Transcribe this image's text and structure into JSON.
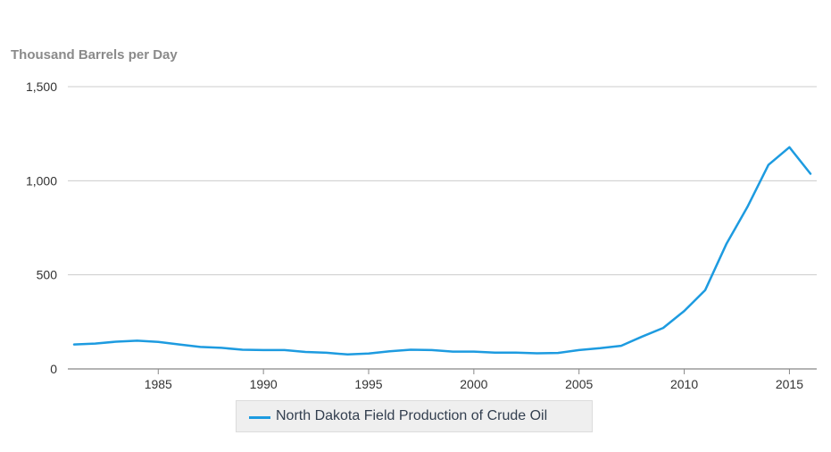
{
  "chart_data": {
    "type": "line",
    "title": "",
    "xlabel": "",
    "ylabel": "Thousand Barrels per Day",
    "xlim": [
      1981,
      2016
    ],
    "ylim": [
      0,
      1500
    ],
    "y_ticks": [
      0,
      500,
      1000,
      1500
    ],
    "y_tick_labels": [
      "0",
      "500",
      "1,000",
      "1,500"
    ],
    "x_ticks": [
      1985,
      1990,
      1995,
      2000,
      2005,
      2010,
      2015
    ],
    "x_tick_labels": [
      "1985",
      "1990",
      "1995",
      "2000",
      "2005",
      "2010",
      "2015"
    ],
    "grid": true,
    "legend": "bottom-center",
    "series": [
      {
        "name": "North Dakota Field Production of Crude Oil",
        "color": "#1d9be0",
        "x": [
          1981,
          1982,
          1983,
          1984,
          1985,
          1986,
          1987,
          1988,
          1989,
          1990,
          1991,
          1992,
          1993,
          1994,
          1995,
          1996,
          1997,
          1998,
          1999,
          2000,
          2001,
          2002,
          2003,
          2004,
          2005,
          2006,
          2007,
          2008,
          2009,
          2010,
          2011,
          2012,
          2013,
          2014,
          2015,
          2016
        ],
        "values": [
          130,
          135,
          145,
          150,
          144,
          130,
          117,
          112,
          102,
          100,
          100,
          90,
          86,
          77,
          82,
          94,
          102,
          100,
          92,
          92,
          87,
          87,
          83,
          85,
          100,
          110,
          123,
          172,
          218,
          308,
          419,
          663,
          860,
          1084,
          1178,
          1037
        ]
      }
    ]
  }
}
